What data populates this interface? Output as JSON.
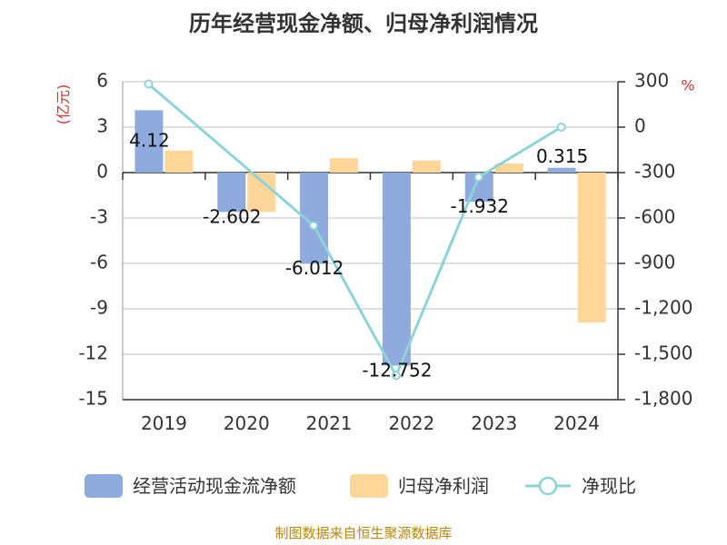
{
  "chart_data": {
    "type": "bar",
    "title": "历年经营现金净额、归母净利润情况",
    "categories": [
      "2019",
      "2020",
      "2021",
      "2022",
      "2023",
      "2024"
    ],
    "left_axis": {
      "unit": "(亿元)",
      "ylim": [
        -15,
        6
      ],
      "ticks": [
        6,
        3,
        0,
        -3,
        -6,
        -9,
        -12,
        -15
      ],
      "tick_labels": [
        "6",
        "3",
        "0",
        "-3",
        "-6",
        "-9",
        "-12",
        "-15"
      ]
    },
    "right_axis": {
      "unit": "%",
      "ylim": [
        -1800,
        300
      ],
      "ticks": [
        300,
        0,
        -300,
        -600,
        -900,
        -1200,
        -1500,
        -1800
      ],
      "tick_labels": [
        "300",
        "0",
        "-300",
        "-600",
        "-900",
        "-1,200",
        "-1,500",
        "-1,800"
      ]
    },
    "series": [
      {
        "name": "经营活动现金流净额",
        "type": "bar",
        "axis": "left",
        "color": "#8faadc",
        "values": [
          4.12,
          -2.602,
          -6.012,
          -12.752,
          -1.932,
          0.315
        ],
        "labels": [
          "4.12",
          "-2.602",
          "-6.012",
          "-12.752",
          "-1.932",
          "0.315"
        ]
      },
      {
        "name": "归母净利润",
        "type": "bar",
        "axis": "left",
        "color": "#ffd699",
        "values": [
          1.45,
          -2.6,
          0.95,
          0.8,
          0.6,
          -9.9
        ]
      },
      {
        "name": "净现比",
        "type": "line",
        "axis": "right",
        "color": "#8dd3d8",
        "values": [
          285,
          null,
          -650,
          -1640,
          -330,
          0
        ]
      }
    ],
    "grid": true,
    "legend": "bottom"
  },
  "source": "制图数据来自恒生聚源数据库"
}
